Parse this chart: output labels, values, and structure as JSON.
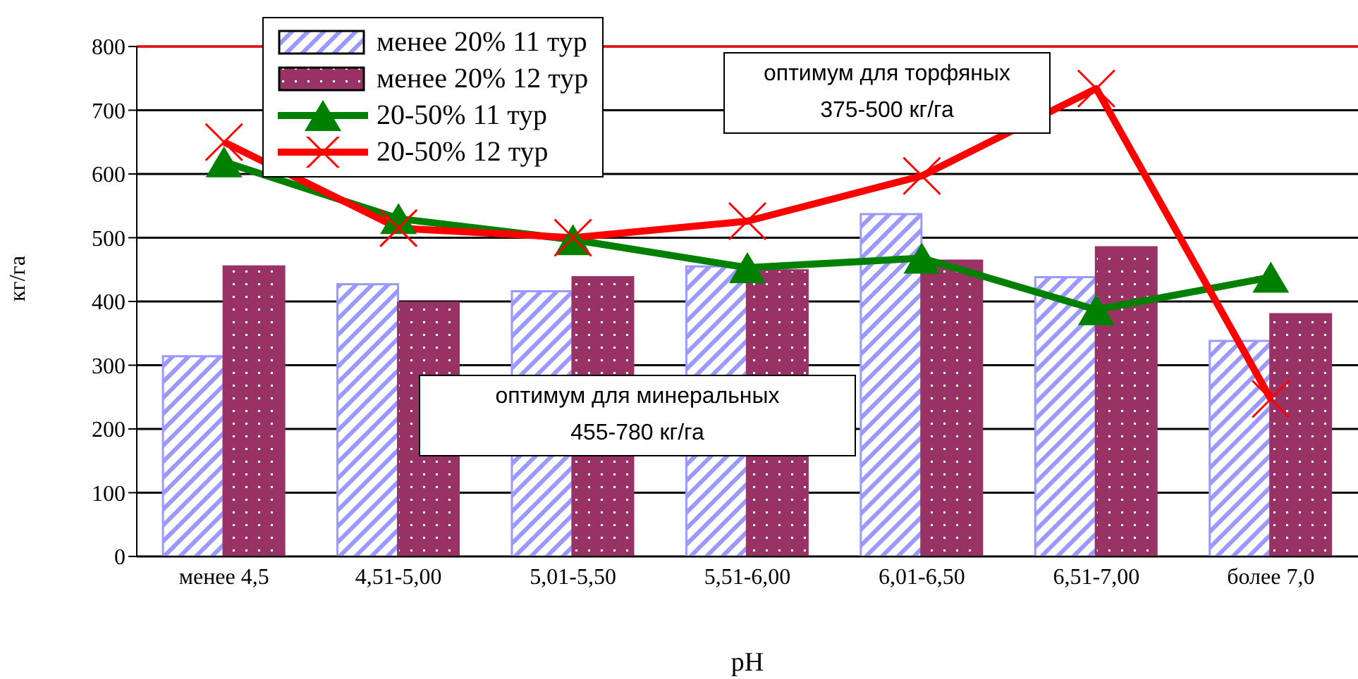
{
  "chart_data": {
    "type": "bar",
    "xlabel": "pH",
    "ylabel": "кг/га",
    "categories": [
      "менее 4,5",
      "4,51-5,00",
      "5,01-5,50",
      "5,51-6,00",
      "6,01-6,50",
      "6,51-7,00",
      "более 7,0"
    ],
    "series": [
      {
        "name": "менее 20% 11 тур",
        "color": "#9999ff",
        "values": [
          314,
          427,
          416,
          455,
          537,
          438,
          338
        ]
      },
      {
        "name": "менее 20% 12 тур",
        "color": "#993366",
        "values": [
          455,
          398,
          438,
          449,
          464,
          485,
          380
        ]
      },
      {
        "name": "20-50% 11 тур",
        "type": "line",
        "color": "#008000",
        "marker": "triangle",
        "values": [
          619,
          530,
          497,
          453,
          468,
          387,
          438
        ]
      },
      {
        "name": "20-50% 12 тур",
        "type": "line",
        "color": "#ff0000",
        "marker": "cross",
        "values": [
          650,
          515,
          500,
          526,
          597,
          734,
          247
        ]
      }
    ],
    "ylim": [
      0,
      800
    ],
    "yticks": [
      0,
      100,
      200,
      300,
      400,
      500,
      600,
      700,
      800
    ],
    "grid": "y",
    "legend": "top left",
    "ref_lines": [
      {
        "axis": "y",
        "value": 800,
        "color": "#ff0000"
      }
    ],
    "annotations": [
      "оптимум для торфяных\n375-500 кг/га",
      "оптимум для минеральных\n455-780 кг/га"
    ]
  }
}
